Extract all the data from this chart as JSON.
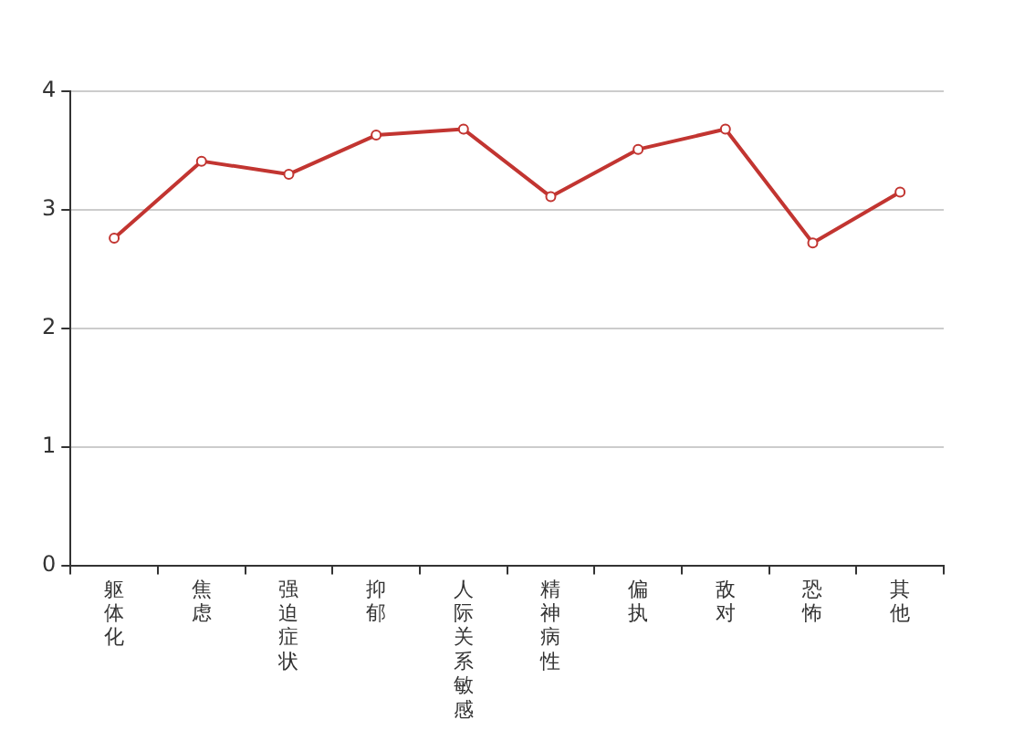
{
  "chart_data": {
    "type": "line",
    "categories": [
      "躯体化",
      "焦虑",
      "强迫症状",
      "抑郁",
      "人际关系敏感",
      "精神病性",
      "偏执",
      "敌对",
      "恐怖",
      "其他"
    ],
    "series": [
      {
        "color": "#c23531",
        "values": [
          2.76,
          3.41,
          3.3,
          3.63,
          3.68,
          3.11,
          3.51,
          3.68,
          2.72,
          3.15
        ]
      }
    ],
    "ylim": [
      0,
      4
    ],
    "yticks": [
      0,
      1,
      2,
      3,
      4
    ],
    "grid": "y",
    "legend": false,
    "marker": "circle",
    "line_style": "solid"
  }
}
